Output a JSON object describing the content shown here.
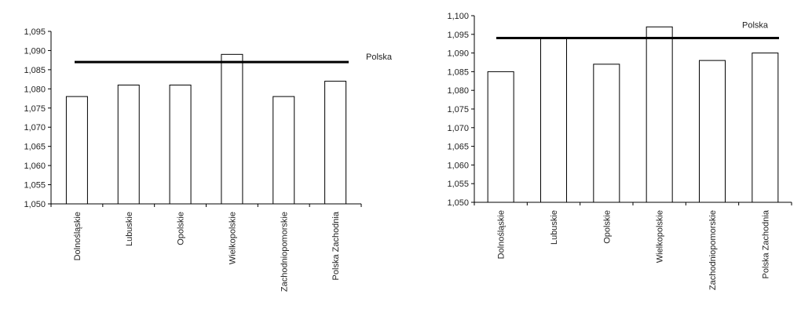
{
  "chart_data": [
    {
      "type": "bar",
      "categories": [
        "Dolnośląskie",
        "Lubuskie",
        "Opolskie",
        "Wielkopolskie",
        "Zachodniopomorskie",
        "Polska Zachodnia"
      ],
      "values": [
        1.078,
        1.081,
        1.081,
        1.089,
        1.078,
        1.082
      ],
      "ylim": [
        1.05,
        1.095
      ],
      "yticks": [
        "1,050",
        "1,055",
        "1,060",
        "1,065",
        "1,070",
        "1,075",
        "1,080",
        "1,085",
        "1,090",
        "1,095"
      ],
      "reference_line": {
        "label": "Polska",
        "value": 1.087
      },
      "bar_fill": "#ffffff",
      "bar_stroke": "#000000",
      "grid": false
    },
    {
      "type": "bar",
      "categories": [
        "Dolnośląskie",
        "Lubuskie",
        "Opolskie",
        "Wielkopolskie",
        "Zachodniopomorskie",
        "Polska Zachodnia"
      ],
      "values": [
        1.085,
        1.094,
        1.087,
        1.097,
        1.088,
        1.09
      ],
      "ylim": [
        1.05,
        1.1
      ],
      "yticks": [
        "1,050",
        "1,055",
        "1,060",
        "1,065",
        "1,070",
        "1,075",
        "1,080",
        "1,085",
        "1,090",
        "1,095",
        "1,100"
      ],
      "reference_line": {
        "label": "Polska",
        "value": 1.094
      },
      "bar_fill": "#ffffff",
      "bar_stroke": "#000000",
      "grid": false
    }
  ]
}
